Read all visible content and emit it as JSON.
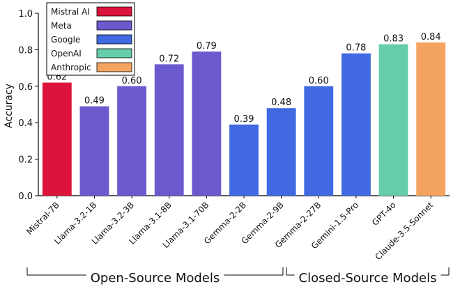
{
  "chart_data": {
    "type": "bar",
    "ylabel": "Accuracy",
    "ylim": [
      0,
      1.0
    ],
    "yticks": [
      "0.0",
      "0.2",
      "0.4",
      "0.6",
      "0.8",
      "1.0"
    ],
    "categories": [
      "Mistral-7B",
      "Llama-3.2-1B",
      "Llama-3.2-3B",
      "Llama-3.1-8B",
      "Llama-3.1-70B",
      "Gemma-2-2B",
      "Gemma-2-9B",
      "Gemma-2-27B",
      "Gemini-1.5-Pro",
      "GPT-4o",
      "Claude-3.5-Sonnet"
    ],
    "values": [
      0.62,
      0.49,
      0.6,
      0.72,
      0.79,
      0.39,
      0.48,
      0.6,
      0.78,
      0.83,
      0.84
    ],
    "value_labels": [
      "0.62",
      "0.49",
      "0.60",
      "0.72",
      "0.79",
      "0.39",
      "0.48",
      "0.60",
      "0.78",
      "0.83",
      "0.84"
    ],
    "bar_groups": [
      "Mistral AI",
      "Meta",
      "Meta",
      "Meta",
      "Meta",
      "Google",
      "Google",
      "Google",
      "Google",
      "OpenAI",
      "Anthropic"
    ],
    "legend": {
      "placement": "top-left",
      "entries": [
        {
          "name": "Mistral AI",
          "color": "#DC143C"
        },
        {
          "name": "Meta",
          "color": "#6A5ACD"
        },
        {
          "name": "Google",
          "color": "#4169E1"
        },
        {
          "name": "OpenAI",
          "color": "#66CDAA"
        },
        {
          "name": "Anthropic",
          "color": "#F4A460"
        }
      ]
    },
    "brackets": [
      {
        "label": "Open-Source Models",
        "from": 0,
        "to": 6
      },
      {
        "label": "Closed-Source Models",
        "to": 10
      }
    ],
    "grid": false
  }
}
